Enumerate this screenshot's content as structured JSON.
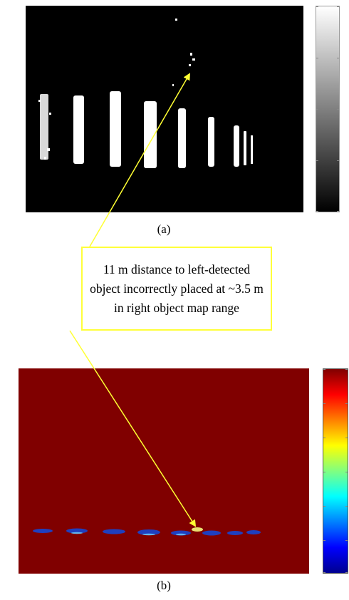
{
  "captions": {
    "a": "(a)",
    "b": "(b)"
  },
  "annotation": {
    "text": "11 m distance to left-detected object incorrectly placed at ~3.5 m in right object map range"
  },
  "colors": {
    "arrow": "#ffff33",
    "panel_a_background": "#000000",
    "panel_b_background": "#800000",
    "detections_a": "#ffffff",
    "detections_b": "#1f3fbf"
  },
  "colorbars": {
    "a": {
      "colormap": "grayscale",
      "ticks": 5
    },
    "b": {
      "colormap": "jet",
      "ticks": 7
    }
  }
}
